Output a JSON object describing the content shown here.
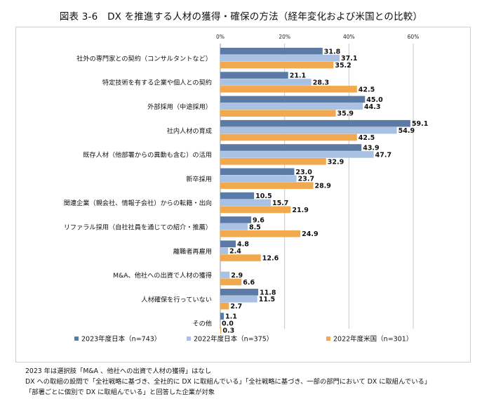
{
  "title": "図表 3-6　DX を推進する人材の獲得・確保の方法（経年変化および米国との比較）",
  "chart_data": {
    "type": "bar",
    "orientation": "horizontal",
    "categories": [
      "社外の専門家との契約（コンサルタントなど）",
      "特定技術を有する企業や個人との契約",
      "外部採用（中途採用）",
      "社内人材の育成",
      "既存人材（他部署からの異動も含む）の活用",
      "新卒採用",
      "関連企業（親会社、情報子会社）からの転籍・出向",
      "リファラル採用（自社社員を通じての紹介・推薦）",
      "離職者再雇用",
      "M&A、他社への出資で人材の獲得",
      "人材確保を行っていない",
      "その他"
    ],
    "series": [
      {
        "name": "2023年度日本（n=743）",
        "color": "#5b7aa5",
        "values": [
          31.8,
          21.1,
          45.0,
          59.1,
          43.9,
          23.0,
          10.5,
          9.6,
          4.8,
          0.0,
          11.8,
          1.1
        ],
        "labels": [
          "31.8",
          "21.1",
          "45.0",
          "59.1",
          "43.9",
          "23.0",
          "10.5",
          "9.6",
          "4.8",
          "",
          "11.8",
          "1.1"
        ]
      },
      {
        "name": "2022年度日本（n=375）",
        "color": "#a9c2e3",
        "values": [
          37.1,
          28.3,
          44.3,
          54.9,
          47.7,
          23.7,
          15.7,
          8.5,
          2.4,
          2.9,
          11.5,
          0.0
        ],
        "labels": [
          "37.1",
          "28.3",
          "44.3",
          "54.9",
          "47.7",
          "23.7",
          "15.7",
          "8.5",
          "2.4",
          "2.9",
          "11.5",
          "0.0"
        ]
      },
      {
        "name": "2022年度米国（n=301）",
        "color": "#f2a94e",
        "values": [
          35.2,
          42.5,
          35.9,
          42.5,
          32.9,
          28.9,
          21.9,
          24.9,
          12.6,
          6.6,
          2.7,
          0.3
        ],
        "labels": [
          "35.2",
          "42.5",
          "35.9",
          "42.5",
          "32.9",
          "28.9",
          "21.9",
          "24.9",
          "12.6",
          "6.6",
          "2.7",
          "0.3"
        ]
      }
    ],
    "xlim": [
      0,
      60
    ],
    "xticks": [
      "0%",
      "20%",
      "40%",
      "60%"
    ],
    "grid": true,
    "legend_position": "bottom"
  },
  "notes": [
    "2023 年は選択肢「M&A 、他社への出資で人材の獲得」はなし",
    "DX への取組の設問で「全社戦略に基づき、全社的に DX に取組んでいる」「全社戦略に基づき、一部の部門において DX に取組んでいる」",
    "「部署ごとに個別で DX に取組んでいる」と回答した企業が対象"
  ]
}
